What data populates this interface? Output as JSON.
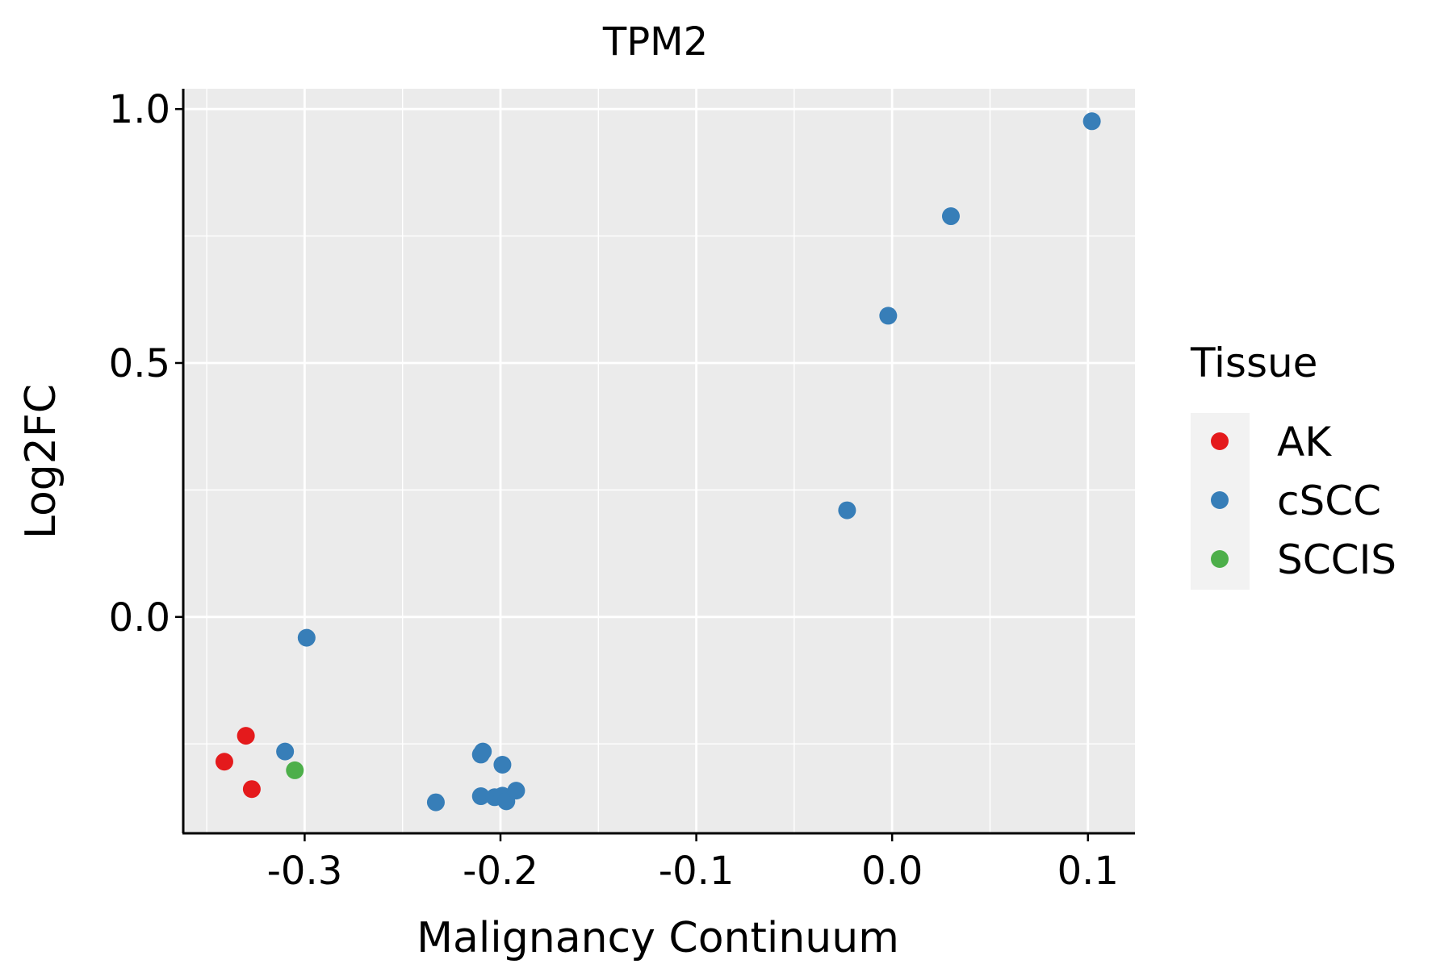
{
  "chart_data": {
    "type": "scatter",
    "title": "TPM2",
    "xlabel": "Malignancy Continuum",
    "ylabel": "Log2FC",
    "xlim": [
      -0.362,
      0.124
    ],
    "ylim": [
      -0.426,
      1.04
    ],
    "xticks": [
      -0.3,
      -0.2,
      -0.1,
      0.0,
      0.1
    ],
    "xtick_labels": [
      "-0.3",
      "-0.2",
      "-0.1",
      "0.0",
      "0.1"
    ],
    "yticks": [
      0.0,
      0.5,
      1.0
    ],
    "ytick_labels": [
      "0.0",
      "0.5",
      "1.0"
    ],
    "grid": true,
    "legend": {
      "title": "Tissue",
      "placement": "right",
      "entries": [
        {
          "name": "AK",
          "color": "#E41A1C"
        },
        {
          "name": "cSCC",
          "color": "#377EB8"
        },
        {
          "name": "SCCIS",
          "color": "#4DAF4A"
        }
      ]
    },
    "series": [
      {
        "name": "AK",
        "color": "#E41A1C",
        "points": [
          {
            "x": -0.341,
            "y": -0.285
          },
          {
            "x": -0.33,
            "y": -0.234
          },
          {
            "x": -0.327,
            "y": -0.339
          }
        ]
      },
      {
        "name": "cSCC",
        "color": "#377EB8",
        "points": [
          {
            "x": 0.102,
            "y": 0.976
          },
          {
            "x": 0.03,
            "y": 0.789
          },
          {
            "x": -0.002,
            "y": 0.593
          },
          {
            "x": -0.023,
            "y": 0.21
          },
          {
            "x": -0.299,
            "y": -0.041
          },
          {
            "x": -0.31,
            "y": -0.265
          },
          {
            "x": -0.209,
            "y": -0.265
          },
          {
            "x": -0.21,
            "y": -0.271
          },
          {
            "x": -0.199,
            "y": -0.291
          },
          {
            "x": -0.233,
            "y": -0.365
          },
          {
            "x": -0.21,
            "y": -0.353
          },
          {
            "x": -0.203,
            "y": -0.355
          },
          {
            "x": -0.199,
            "y": -0.352
          },
          {
            "x": -0.197,
            "y": -0.363
          },
          {
            "x": -0.192,
            "y": -0.342
          }
        ]
      },
      {
        "name": "SCCIS",
        "color": "#4DAF4A",
        "points": [
          {
            "x": -0.305,
            "y": -0.302
          }
        ]
      }
    ]
  }
}
